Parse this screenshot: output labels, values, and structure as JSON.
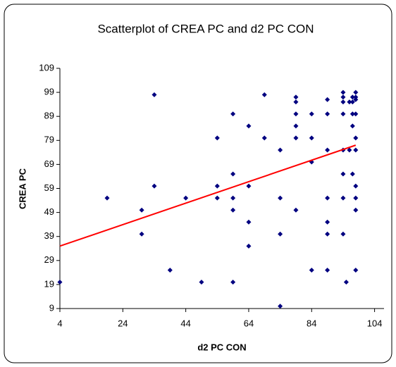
{
  "chart_data": {
    "type": "scatter",
    "title": "Scatterplot of CREA PC  and d2 PC CON",
    "xlabel": "d2 PC CON",
    "ylabel": "CREA PC",
    "xlim": [
      4,
      107
    ],
    "xticks": [
      4,
      24,
      44,
      64,
      84,
      104
    ],
    "ylim": [
      9,
      109
    ],
    "yticks": [
      9,
      19,
      29,
      39,
      49,
      59,
      69,
      79,
      89,
      99,
      109
    ],
    "grid": false,
    "series": [
      {
        "color": "#000080",
        "x": [
          4,
          19,
          30,
          30,
          34,
          34,
          39,
          44,
          49,
          54,
          54,
          54,
          59,
          59,
          59,
          59,
          59,
          64,
          64,
          64,
          64,
          69,
          69,
          74,
          74,
          74,
          74,
          79,
          79,
          79,
          79,
          79,
          79,
          84,
          84,
          84,
          84,
          89,
          89,
          89,
          89,
          89,
          89,
          89,
          94,
          94,
          94,
          94,
          94,
          94,
          94,
          94,
          95,
          96,
          96,
          97,
          97,
          97,
          97,
          97,
          98,
          98,
          98,
          98,
          98,
          98,
          98,
          98,
          98,
          98
        ],
        "values": [
          20,
          55,
          50,
          40,
          98,
          60,
          25,
          55,
          20,
          80,
          60,
          55,
          90,
          65,
          55,
          50,
          20,
          85,
          60,
          45,
          35,
          98,
          80,
          75,
          55,
          40,
          10,
          97,
          95,
          90,
          85,
          80,
          50,
          90,
          80,
          70,
          25,
          96,
          90,
          75,
          55,
          45,
          40,
          25,
          99,
          97,
          95,
          90,
          75,
          65,
          55,
          40,
          20,
          95,
          75,
          97,
          95,
          90,
          85,
          65,
          99,
          97,
          96,
          90,
          80,
          75,
          60,
          55,
          50,
          25
        ]
      }
    ],
    "trendline": {
      "color": "#ff0000",
      "x": [
        4,
        98
      ],
      "y": [
        35,
        77
      ]
    }
  }
}
